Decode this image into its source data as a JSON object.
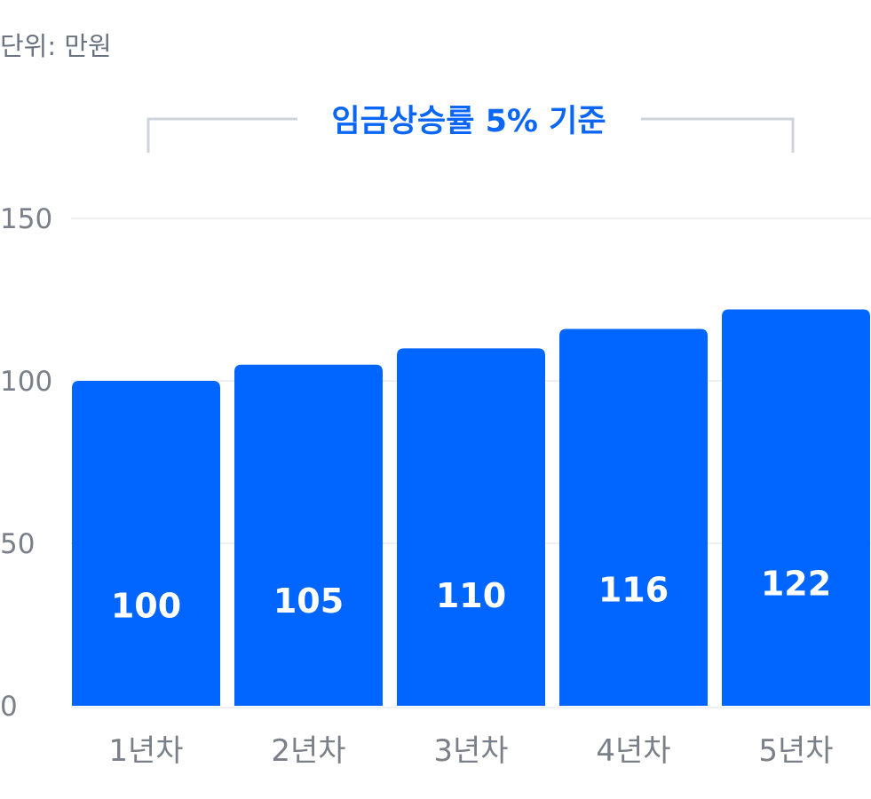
{
  "unit_label": "단위: 만원",
  "annotation": "임금상승률 5% 기준",
  "colors": {
    "bar": "#0066ff",
    "annotation": "#0b66f5",
    "grid": "#eef0f3",
    "bracket": "#cfd3dc"
  },
  "chart_data": {
    "type": "bar",
    "title": "",
    "xlabel": "",
    "ylabel": "",
    "categories": [
      "1년차",
      "2년차",
      "3년차",
      "4년차",
      "5년차"
    ],
    "values": [
      100,
      105,
      110,
      116,
      122
    ],
    "value_labels": [
      "100",
      "105",
      "110",
      "116",
      "122"
    ],
    "y_ticks": [
      "0",
      "50",
      "100",
      "150"
    ],
    "ylim": [
      0,
      150
    ],
    "grid": true,
    "legend": "none"
  }
}
